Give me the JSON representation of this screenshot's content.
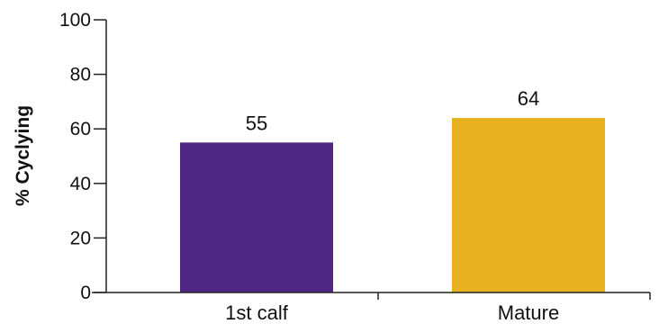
{
  "chart_data": {
    "type": "bar",
    "categories": [
      "1st calf",
      "Mature"
    ],
    "values": [
      55,
      64
    ],
    "data_labels": [
      "55",
      "64"
    ],
    "colors": [
      "#4f2683",
      "#e8b120"
    ],
    "title": "",
    "xlabel": "",
    "ylabel": "% Cyclying",
    "ylim": [
      0,
      100
    ],
    "yticks": [
      0,
      20,
      40,
      60,
      80,
      100
    ],
    "ytick_labels": [
      "0",
      "20",
      "40",
      "60",
      "80",
      "100"
    ],
    "grid": false,
    "legend": "none"
  }
}
